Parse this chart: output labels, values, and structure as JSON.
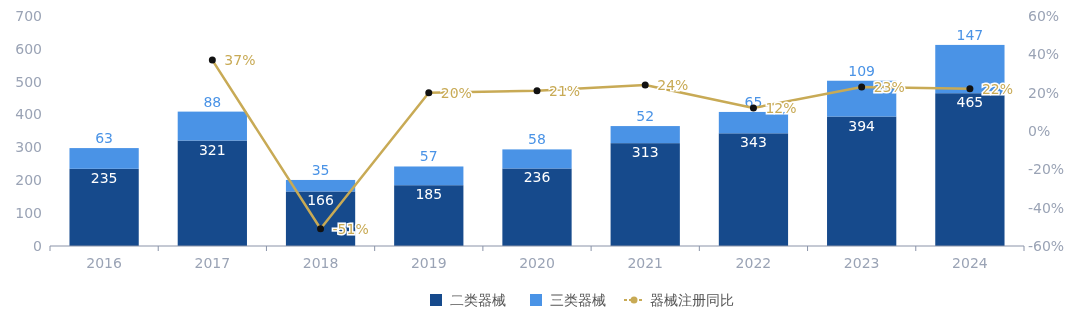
{
  "chart_data": {
    "type": "bar",
    "stacked": true,
    "categories": [
      "2016",
      "2017",
      "2018",
      "2019",
      "2020",
      "2021",
      "2022",
      "2023",
      "2024"
    ],
    "series": [
      {
        "name": "二类器械",
        "color": "#164a8c",
        "values": [
          235,
          321,
          166,
          185,
          236,
          313,
          343,
          394,
          465
        ]
      },
      {
        "name": "三类器械",
        "color": "#4a93e6",
        "values": [
          63,
          88,
          35,
          57,
          58,
          52,
          65,
          109,
          147
        ]
      },
      {
        "name": "器械注册同比",
        "type": "line",
        "axis": "y2",
        "color": "#c8aa55",
        "marker": "circle",
        "values": [
          null,
          37,
          -51,
          20,
          21,
          24,
          12,
          23,
          22
        ],
        "value_labels": [
          null,
          "37%",
          "-51%",
          "20%",
          "21%",
          "24%",
          "12%",
          "23%",
          "22%"
        ]
      }
    ],
    "ylim": [
      0,
      700
    ],
    "yticks": [
      0,
      100,
      200,
      300,
      400,
      500,
      600,
      700
    ],
    "y2lim": [
      -60,
      60
    ],
    "y2ticks": [
      {
        "value": -60,
        "label": "-60%"
      },
      {
        "value": -40,
        "label": "-40%"
      },
      {
        "value": -20,
        "label": "-20%"
      },
      {
        "value": 0,
        "label": "0%"
      },
      {
        "value": 20,
        "label": "20%"
      },
      {
        "value": 40,
        "label": "40%"
      },
      {
        "value": 60,
        "label": "60%"
      }
    ],
    "data_labels": true,
    "legend": "bottom"
  }
}
